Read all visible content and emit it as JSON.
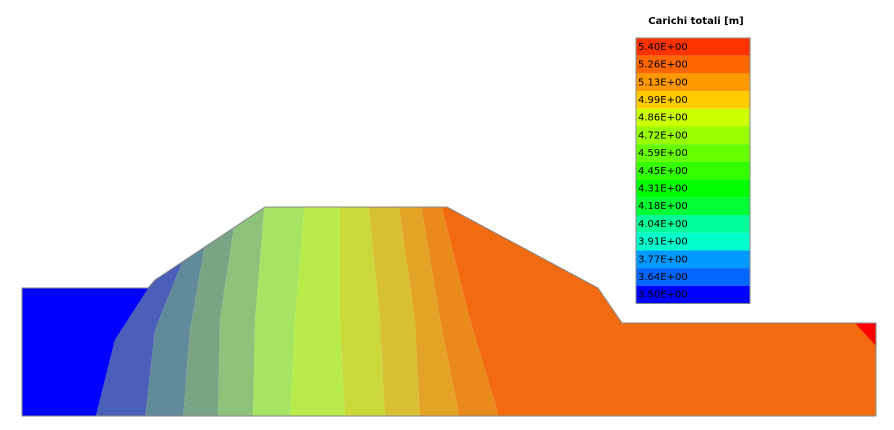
{
  "chart_data": {
    "type": "contour",
    "legend": {
      "title": "Carichi totali [m]",
      "values": [
        5.4,
        5.26,
        5.13,
        4.99,
        4.86,
        4.72,
        4.59,
        4.45,
        4.31,
        4.18,
        4.04,
        3.91,
        3.77,
        3.64,
        3.5
      ],
      "value_labels": [
        "5.40E+00",
        "5.26E+00",
        "5.13E+00",
        "4.99E+00",
        "4.86E+00",
        "4.72E+00",
        "4.59E+00",
        "4.45E+00",
        "4.31E+00",
        "4.18E+00",
        "4.04E+00",
        "3.91E+00",
        "3.77E+00",
        "3.64E+00",
        "3.50E+00"
      ],
      "colors": [
        "#ff3300",
        "#ff6600",
        "#ff9900",
        "#ffcc00",
        "#ccff00",
        "#99ff00",
        "#66ff00",
        "#33ff00",
        "#00ff00",
        "#00ff33",
        "#00ff99",
        "#00ffcc",
        "#0099ff",
        "#0066ff",
        "#0000ff"
      ]
    },
    "band_colors": [
      "#ff0000",
      "#f26b10",
      "#e98a1b",
      "#e4a324",
      "#d7c132",
      "#cbd83a",
      "#b8ec48",
      "#a6e464",
      "#8dc27a",
      "#7aa585",
      "#618a9a",
      "#4a5fb8",
      "#0000ff"
    ]
  }
}
